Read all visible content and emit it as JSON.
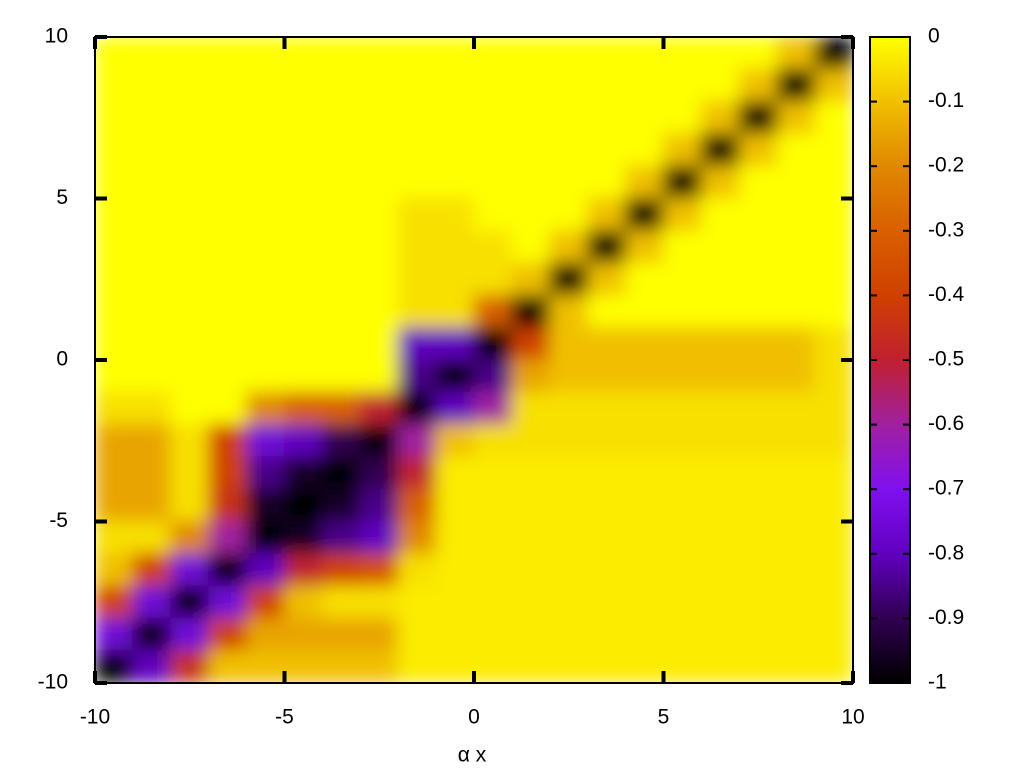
{
  "chart_data": {
    "type": "heatmap",
    "xlabel": "α x",
    "x": [
      -9.5,
      -8.5,
      -7.5,
      -6.5,
      -5.5,
      -4.5,
      -3.5,
      -2.5,
      -1.5,
      -0.5,
      0.5,
      1.5,
      2.5,
      3.5,
      4.5,
      5.5,
      6.5,
      7.5,
      8.5,
      9.5
    ],
    "y": [
      9.5,
      8.5,
      7.5,
      6.5,
      5.5,
      4.5,
      3.5,
      2.5,
      1.5,
      0.5,
      -0.5,
      -1.5,
      -2.5,
      -3.5,
      -4.5,
      -5.5,
      -6.5,
      -7.5,
      -8.5,
      -9.5
    ],
    "z": [
      [
        0,
        0,
        0,
        0,
        0,
        0,
        0,
        0,
        0,
        0,
        0,
        0,
        0,
        0,
        0,
        0,
        0,
        0,
        -0.1,
        -1
      ],
      [
        0,
        0,
        0,
        0,
        0,
        0,
        0,
        0,
        0,
        0,
        0,
        0,
        0,
        0,
        0,
        0,
        0,
        -0.1,
        -1,
        -0.1
      ],
      [
        0,
        0,
        0,
        0,
        0,
        0,
        0,
        0,
        0,
        0,
        0,
        0,
        0,
        0,
        0,
        0,
        -0.1,
        -1,
        -0.1,
        0
      ],
      [
        0,
        0,
        0,
        0,
        0,
        0,
        0,
        0,
        0,
        0,
        0,
        0,
        0,
        0,
        0,
        -0.1,
        -1,
        -0.1,
        0,
        0
      ],
      [
        0,
        0,
        0,
        0,
        0,
        0,
        0,
        0,
        0,
        0,
        0,
        0,
        0,
        0,
        -0.1,
        -1,
        -0.1,
        0,
        0,
        0
      ],
      [
        0,
        0,
        0,
        0,
        0,
        0,
        0,
        0,
        -0.05,
        -0.05,
        0,
        0,
        0,
        -0.1,
        -1,
        -0.1,
        0,
        0,
        0,
        0
      ],
      [
        0,
        0,
        0,
        0,
        0,
        0,
        0,
        0,
        -0.05,
        -0.05,
        -0.05,
        0,
        -0.1,
        -1,
        -0.1,
        0,
        0,
        0,
        0,
        0
      ],
      [
        0,
        0,
        0,
        0,
        0,
        0,
        0,
        0,
        -0.05,
        -0.05,
        -0.05,
        -0.1,
        -1,
        -0.1,
        0,
        0,
        0,
        0,
        0,
        0
      ],
      [
        0,
        0,
        0,
        0,
        0,
        0,
        0,
        0,
        -0.05,
        -0.05,
        -0.3,
        -1,
        -0.1,
        0,
        0,
        0,
        0,
        0,
        0,
        0
      ],
      [
        0,
        0,
        0,
        0,
        0,
        0,
        0,
        0,
        -0.8,
        -0.8,
        -1,
        -0.4,
        -0.1,
        -0.1,
        -0.1,
        -0.1,
        -0.1,
        -0.1,
        -0.1,
        -0.05
      ],
      [
        0,
        0,
        0,
        0,
        0,
        0,
        0,
        0,
        -0.85,
        -1,
        -0.85,
        -0.15,
        -0.1,
        -0.1,
        -0.1,
        -0.1,
        -0.1,
        -0.1,
        -0.1,
        -0.05
      ],
      [
        -0.05,
        -0.05,
        0,
        0,
        -0.2,
        -0.3,
        -0.3,
        -0.5,
        -1,
        -0.8,
        -0.6,
        -0.05,
        -0.05,
        -0.05,
        -0.05,
        -0.05,
        -0.05,
        -0.05,
        -0.05,
        -0.05
      ],
      [
        -0.15,
        -0.15,
        -0.05,
        -0.4,
        -0.75,
        -0.8,
        -0.9,
        -1,
        -0.6,
        -0.1,
        -0.05,
        -0.05,
        -0.05,
        -0.05,
        -0.05,
        -0.05,
        -0.05,
        -0.05,
        -0.05,
        -0.05
      ],
      [
        -0.15,
        -0.15,
        -0.05,
        -0.4,
        -0.85,
        -0.95,
        -1,
        -0.9,
        -0.5,
        -0.03,
        -0.03,
        -0.03,
        -0.03,
        -0.03,
        -0.03,
        -0.03,
        -0.03,
        -0.03,
        -0.03,
        -0.03
      ],
      [
        -0.15,
        -0.15,
        -0.05,
        -0.45,
        -0.95,
        -1,
        -0.95,
        -0.85,
        -0.3,
        -0.03,
        -0.03,
        -0.03,
        -0.03,
        -0.03,
        -0.03,
        -0.03,
        -0.03,
        -0.03,
        -0.03,
        -0.03
      ],
      [
        -0.05,
        -0.05,
        -0.2,
        -0.6,
        -1,
        -0.95,
        -0.85,
        -0.8,
        -0.2,
        -0.03,
        -0.03,
        -0.03,
        -0.03,
        -0.03,
        -0.03,
        -0.03,
        -0.03,
        -0.03,
        -0.03,
        -0.03
      ],
      [
        -0.1,
        -0.4,
        -0.75,
        -1,
        -0.8,
        -0.5,
        -0.4,
        -0.35,
        -0.05,
        -0.03,
        -0.03,
        -0.03,
        -0.03,
        -0.03,
        -0.03,
        -0.03,
        -0.03,
        -0.03,
        -0.03,
        -0.03
      ],
      [
        -0.4,
        -0.75,
        -1,
        -0.75,
        -0.4,
        -0.1,
        -0.05,
        -0.05,
        -0.03,
        -0.03,
        -0.03,
        -0.03,
        -0.03,
        -0.03,
        -0.03,
        -0.03,
        -0.03,
        -0.03,
        -0.03,
        -0.03
      ],
      [
        -0.75,
        -1,
        -0.75,
        -0.4,
        -0.15,
        -0.15,
        -0.15,
        -0.15,
        -0.03,
        -0.03,
        -0.03,
        -0.03,
        -0.03,
        -0.03,
        -0.03,
        -0.03,
        -0.03,
        -0.03,
        -0.03,
        -0.03
      ],
      [
        -1,
        -0.8,
        -0.45,
        -0.1,
        -0.1,
        -0.1,
        -0.1,
        -0.1,
        -0.03,
        -0.03,
        -0.03,
        -0.03,
        -0.03,
        -0.03,
        -0.03,
        -0.03,
        -0.03,
        -0.03,
        -0.03,
        -0.03
      ]
    ],
    "xlim": [
      -10,
      10
    ],
    "xticks": [
      -10,
      -5,
      0,
      5,
      10
    ],
    "ylim": [
      -10,
      10
    ],
    "yticks": [
      -10,
      -5,
      0,
      5,
      10
    ],
    "zlim": [
      -1,
      0
    ],
    "zticks": [
      0,
      -0.1,
      -0.2,
      -0.3,
      -0.4,
      -0.5,
      -0.6,
      -0.7,
      -0.8,
      -0.9,
      -1
    ],
    "colorscale": [
      "#000000",
      "#300050",
      "#6000c0",
      "#8010f0",
      "#a020a0",
      "#c02030",
      "#d04000",
      "#d86000",
      "#e08800",
      "#f0c000",
      "#ffff00"
    ]
  }
}
